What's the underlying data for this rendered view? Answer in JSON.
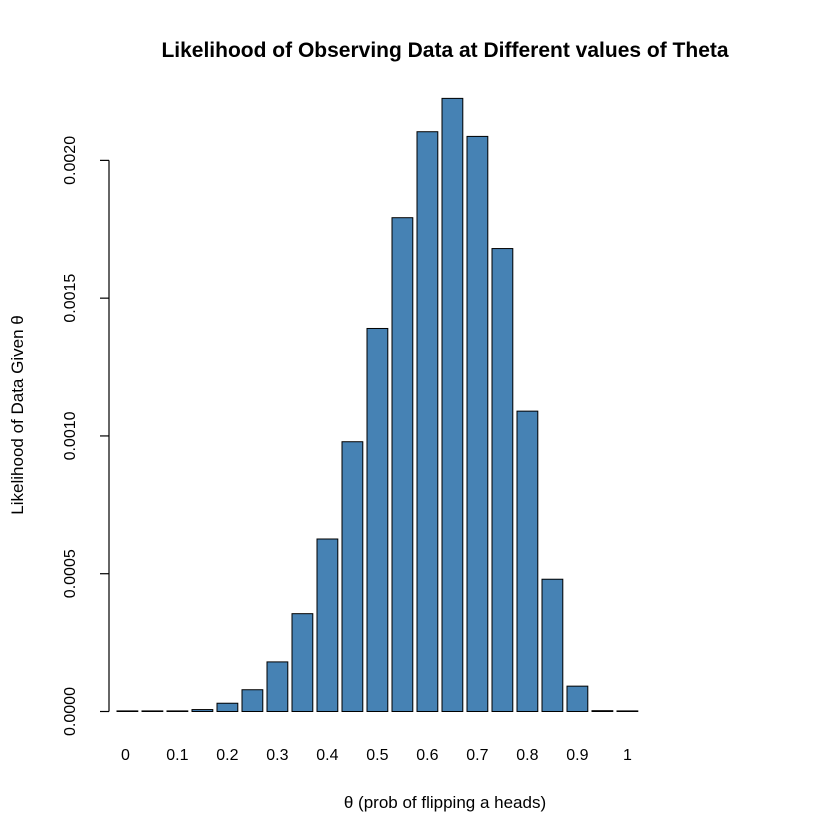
{
  "chart_data": {
    "type": "bar",
    "title": "Likelihood of Observing Data at Different values of Theta",
    "xlabel": "θ (prob of flipping a heads)",
    "ylabel": "Likelihood of Data Given θ",
    "categories": [
      "0",
      "0.05",
      "0.1",
      "0.15",
      "0.2",
      "0.25",
      "0.3",
      "0.35",
      "0.4",
      "0.45",
      "0.5",
      "0.55",
      "0.6",
      "0.65",
      "0.7",
      "0.75",
      "0.8",
      "0.85",
      "0.9",
      "0.95",
      "1"
    ],
    "values": [
      0,
      1e-07,
      1e-06,
      7e-06,
      3e-05,
      7.9e-05,
      0.00018,
      0.000355,
      0.000626,
      0.000979,
      0.00139,
      0.001792,
      0.002104,
      0.002225,
      0.002087,
      0.00168,
      0.00109,
      0.00048,
      9.2e-05,
      3e-06,
      0
    ],
    "x_tick_labels": [
      "0",
      "0.1",
      "0.2",
      "0.3",
      "0.4",
      "0.5",
      "0.6",
      "0.7",
      "0.8",
      "0.9",
      "1"
    ],
    "y_ticks": [
      0,
      0.0005,
      0.001,
      0.0015,
      0.002
    ],
    "y_tick_labels": [
      "0.0000",
      "0.0005",
      "0.0010",
      "0.0015",
      "0.0020"
    ],
    "ylim": [
      0,
      0.00223
    ],
    "bar_color": "#4682B4",
    "bar_border_color": "#000000",
    "grid": false,
    "legend": false
  }
}
